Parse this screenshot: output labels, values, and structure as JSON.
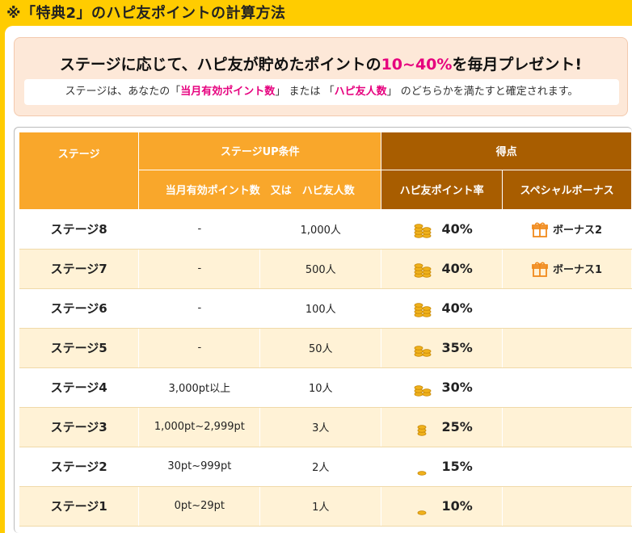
{
  "title": "※「特典2」のハピ友ポイントの計算方法",
  "intro": {
    "headline_pre": "ステージに応じて、ハピ友が貯めたポイントの",
    "headline_highlight": "10~40%",
    "headline_post": "を毎月プレゼント!",
    "note_pre": "ステージは、あなたの「",
    "note_h1": "当月有効ポイント数",
    "note_mid": "」 または 「",
    "note_h2": "ハピ友人数",
    "note_post": "」 のどちらかを満たすと確定されます。"
  },
  "table": {
    "header": {
      "stage": "ステージ",
      "condition": "ステージUP条件",
      "condition_sub": "当月有効ポイント数　又は　ハピ友人数",
      "reward": "得点",
      "rate": "ハピ友ポイント率",
      "bonus": "スペシャルボーナス"
    },
    "rows": [
      {
        "stage": "ステージ8",
        "points": "-",
        "friends": "1,000人",
        "rate": "40%",
        "bonus": "ボーナス2",
        "coins": 4
      },
      {
        "stage": "ステージ7",
        "points": "-",
        "friends": "500人",
        "rate": "40%",
        "bonus": "ボーナス1",
        "coins": 4
      },
      {
        "stage": "ステージ6",
        "points": "-",
        "friends": "100人",
        "rate": "40%",
        "bonus": "",
        "coins": 4
      },
      {
        "stage": "ステージ5",
        "points": "-",
        "friends": "50人",
        "rate": "35%",
        "bonus": "",
        "coins": 3
      },
      {
        "stage": "ステージ4",
        "points": "3,000pt以上",
        "friends": "10人",
        "rate": "30%",
        "bonus": "",
        "coins": 3
      },
      {
        "stage": "ステージ3",
        "points": "1,000pt~2,999pt",
        "friends": "3人",
        "rate": "25%",
        "bonus": "",
        "coins": 2
      },
      {
        "stage": "ステージ2",
        "points": "30pt~999pt",
        "friends": "2人",
        "rate": "15%",
        "bonus": "",
        "coins": 1
      },
      {
        "stage": "ステージ1",
        "points": "0pt~29pt",
        "friends": "1人",
        "rate": "10%",
        "bonus": "",
        "coins": 1
      }
    ]
  },
  "colors": {
    "accent_orange": "#f9a72b",
    "accent_brown": "#a85d00",
    "highlight_pink": "#e6007e",
    "row_alt": "#fff2d6",
    "background": "#ffcc00"
  },
  "icons": {
    "rate": "coin-stack-icon",
    "bonus": "gift-box-icon"
  }
}
